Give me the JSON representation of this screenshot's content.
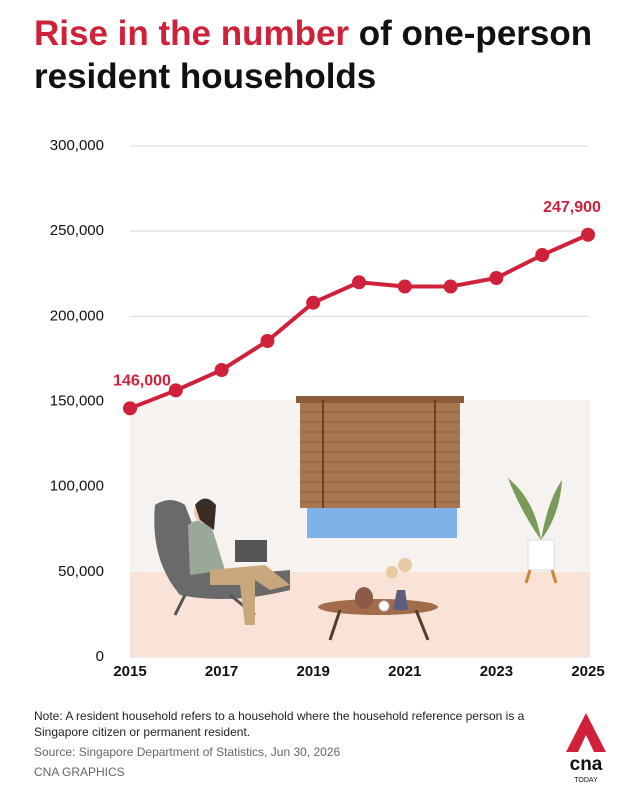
{
  "chart_data": {
    "type": "line",
    "title_highlight": "Rise in the number",
    "title_rest": "of one-person resident households",
    "x": [
      2015,
      2016,
      2017,
      2018,
      2019,
      2020,
      2021,
      2022,
      2023,
      2024,
      2025
    ],
    "xlim": [
      2015,
      2025
    ],
    "xticks": [
      2015,
      2017,
      2019,
      2021,
      2023,
      2025
    ],
    "series": [
      {
        "name": "One-person resident households",
        "color": "#d0213a",
        "values": [
          146000,
          156500,
          168500,
          185500,
          208000,
          220000,
          217500,
          217500,
          222500,
          236000,
          247900
        ],
        "value_labels": [
          "146,000",
          null,
          null,
          null,
          null,
          null,
          null,
          null,
          null,
          null,
          "247,900"
        ]
      }
    ],
    "ylim": [
      0,
      300000
    ],
    "yticks": [
      0,
      {
        "value": 50000,
        "label": "50,000"
      },
      {
        "value": 100000,
        "label": "100,000"
      },
      {
        "value": 150000,
        "label": "150,000"
      },
      {
        "value": 200000,
        "label": "200,000"
      },
      {
        "value": 250000,
        "label": "250,000"
      },
      {
        "value": 300000,
        "label": "300,000"
      }
    ],
    "grid": true,
    "note": "Note: A resident household refers to a household where the household reference person is a Singapore citizen or permanent resident.",
    "source": "Source: Singapore Department of Statistics, Jun 30, 2026",
    "credit": "CNA GRAPHICS",
    "logo_main": "cna",
    "logo_sub": "TODAY"
  }
}
